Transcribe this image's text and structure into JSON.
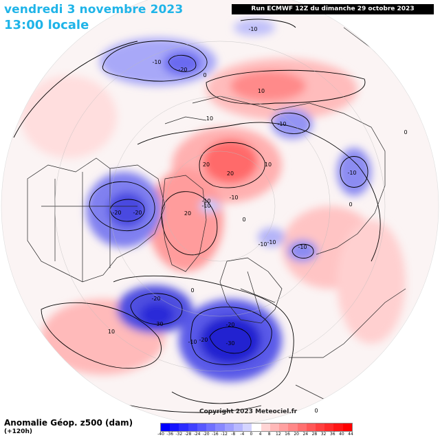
{
  "header": {
    "date": "vendredi 3 novembre 2023",
    "time": "13:00 locale",
    "run": "Run ECMWF 12Z du dimanche 29 octobre 2023"
  },
  "footer": {
    "title": "Anomalie Géop. z500 (dam)",
    "subtitle": "(+120h)",
    "copyright": "Copyright 2023 Meteociel.fr"
  },
  "colors": {
    "negative_strong": "#2020e0",
    "negative_weak": "#c8c8ff",
    "positive_weak": "#ffc8c8",
    "positive_strong": "#e02020"
  },
  "legend": {
    "labels": [
      "-40",
      "-36",
      "-32",
      "-28",
      "-24",
      "-20",
      "-16",
      "-12",
      "-8",
      "-4",
      "0",
      "4",
      "8",
      "12",
      "16",
      "20",
      "24",
      "28",
      "32",
      "36",
      "40",
      "44"
    ],
    "colors": [
      "#0000ff",
      "#1515ff",
      "#2b2bff",
      "#4040ff",
      "#5858ff",
      "#7070ff",
      "#8888ff",
      "#a0a0ff",
      "#b8b8ff",
      "#d4d4ff",
      "#ffffff",
      "#ffd4d4",
      "#ffb8b8",
      "#ffa0a0",
      "#ff8888",
      "#ff7070",
      "#ff5858",
      "#ff4040",
      "#ff2b2b",
      "#ff1515",
      "#ff0000"
    ]
  },
  "contour_labels": [
    "-10",
    "-10",
    "-20",
    "-10",
    "-10",
    "-20",
    "10",
    "-20",
    "-10",
    "-10",
    "-10",
    "-10",
    "-10",
    "20",
    "-20",
    "-30",
    "-20",
    "-30",
    "-20",
    "-10",
    "-10",
    "10",
    "10",
    "10",
    "20",
    "20",
    "0",
    "0",
    "0",
    "0",
    "0",
    "0"
  ]
}
